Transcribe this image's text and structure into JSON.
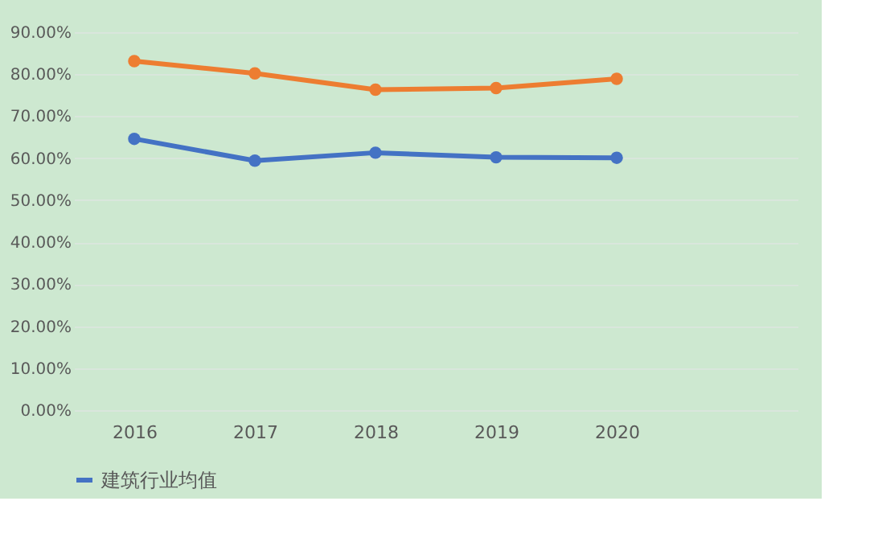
{
  "chart_data": {
    "type": "line",
    "categories": [
      "2016",
      "2017",
      "2018",
      "2019",
      "2020",
      null
    ],
    "series": [
      {
        "name": "建筑行业均值",
        "color": "#4472c4",
        "values": [
          64.6,
          59.4,
          61.3,
          60.2,
          60.1,
          null
        ]
      },
      {
        "color": "#ed7d31",
        "values": [
          83.1,
          80.2,
          76.3,
          76.7,
          78.9,
          null
        ]
      }
    ],
    "ylim": [
      0,
      90
    ],
    "yticks": [
      {
        "value": 0,
        "label": "0.00%"
      },
      {
        "value": 10,
        "label": "10.00%"
      },
      {
        "value": 20,
        "label": "20.00%"
      },
      {
        "value": 30,
        "label": "30.00%"
      },
      {
        "value": 40,
        "label": "40.00%"
      },
      {
        "value": 50,
        "label": "50.00%"
      },
      {
        "value": 60,
        "label": "60.00%"
      },
      {
        "value": 70,
        "label": "70.00%"
      },
      {
        "value": 80,
        "label": "80.00%"
      },
      {
        "value": 90,
        "label": "90.00%"
      }
    ],
    "grid": "y",
    "legend": "bottom",
    "marker": "circle",
    "line_style": "solid"
  }
}
